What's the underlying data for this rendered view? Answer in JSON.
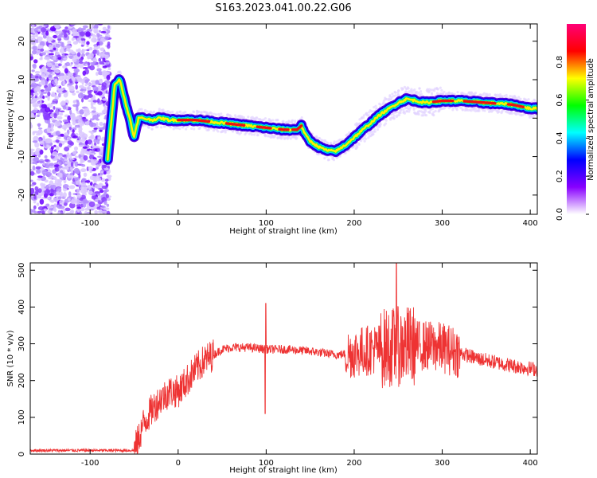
{
  "figure": {
    "title": "S163.2023.041.00.22.G06"
  },
  "chart_data": [
    {
      "type": "heatmap",
      "xlabel": "Height of straight line (km)",
      "ylabel": "Frequency (Hz)",
      "xlim": [
        -168,
        408
      ],
      "ylim": [
        -25,
        24.5
      ],
      "xticks": [
        -100,
        0,
        100,
        200,
        300,
        400
      ],
      "yticks": [
        -20,
        -10,
        0,
        10,
        20
      ],
      "colorbar": {
        "label": "Normalized spectral amplitude",
        "range": [
          0,
          1
        ],
        "ticks": [
          "0.0",
          "0.2",
          "0.4",
          "0.6",
          "0.8"
        ],
        "tick_values": [
          0,
          0.2,
          0.4,
          0.6,
          0.8
        ],
        "colors": [
          "#ffffff",
          "#8800ff",
          "#0000ff",
          "#00ffff",
          "#00ff00",
          "#ffff00",
          "#ff0000",
          "#ff0077"
        ]
      },
      "ridge": {
        "x": [
          -80,
          -72,
          -66,
          -60,
          -55,
          -50,
          -45,
          -40,
          -30,
          -20,
          -10,
          0,
          20,
          40,
          60,
          80,
          100,
          120,
          135,
          140,
          145,
          150,
          160,
          170,
          180,
          190,
          200,
          210,
          220,
          230,
          240,
          250,
          260,
          270,
          280,
          300,
          320,
          350,
          380,
          400,
          408
        ],
        "freq": [
          -11,
          9,
          10,
          4,
          0,
          -5,
          0,
          0,
          -0.5,
          0,
          -0.5,
          -0.5,
          -0.5,
          -1,
          -1.5,
          -2,
          -2.5,
          -3,
          -3,
          -2,
          -4.5,
          -6,
          -7.5,
          -8.5,
          -8.5,
          -7,
          -5,
          -3,
          -1,
          1,
          2.5,
          4,
          5,
          4.5,
          4,
          4.5,
          4.5,
          4,
          3.5,
          2.5,
          2.5
        ]
      }
    },
    {
      "type": "line",
      "xlabel": "Height of straight line (km)",
      "ylabel": "SNR (10 * v/v)",
      "xlim": [
        -168,
        408
      ],
      "ylim": [
        0,
        520
      ],
      "xticks": [
        -100,
        0,
        100,
        200,
        300,
        400
      ],
      "yticks": [
        0,
        100,
        200,
        300,
        400,
        500
      ],
      "color": "#ee3333",
      "series": [
        {
          "x": [
            -168,
            -100,
            -50,
            -45,
            -40,
            -30,
            -20,
            -10,
            0,
            10,
            20,
            30,
            40,
            50,
            60,
            80,
            100,
            120,
            150,
            180,
            200,
            220,
            240,
            260,
            280,
            300,
            320,
            340,
            360,
            380,
            408
          ],
          "values": [
            10,
            10,
            10,
            40,
            80,
            120,
            150,
            170,
            170,
            200,
            230,
            255,
            270,
            285,
            290,
            290,
            285,
            285,
            280,
            270,
            275,
            285,
            290,
            295,
            295,
            290,
            275,
            260,
            250,
            240,
            230
          ]
        }
      ]
    }
  ]
}
